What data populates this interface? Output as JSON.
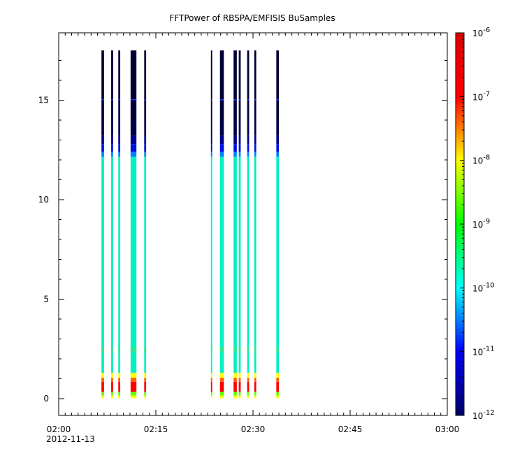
{
  "chart_data": {
    "type": "heatmap",
    "title": "FFTPower of RBSPA/EMFISIS  BuSamples",
    "xlabel": "",
    "ylabel": "",
    "x_date_label": "2012-11-13",
    "xlim": [
      "02:00",
      "03:00"
    ],
    "x_ticks": [
      "02:00",
      "02:15",
      "02:30",
      "02:45",
      "03:00"
    ],
    "ylim": [
      -0.9,
      18.4
    ],
    "y_ticks": [
      0,
      5,
      10,
      15
    ],
    "colorbar": {
      "scale": "log",
      "range": [
        "1e-12",
        "1e-6"
      ],
      "tick_base": "10",
      "tick_exponents": [
        "-12",
        "-11",
        "-10",
        "-9",
        "-8",
        "-7",
        "-6"
      ],
      "colormap": [
        "#000066",
        "#0000ff",
        "#00ffff",
        "#00ff00",
        "#ffff00",
        "#ff0000",
        "#e00000"
      ]
    },
    "frequency_max": 17.5,
    "columns": [
      {
        "start_min": 6.6,
        "end_min": 7.0,
        "low_band": "red"
      },
      {
        "start_min": 8.1,
        "end_min": 8.4,
        "low_band": "red"
      },
      {
        "start_min": 9.2,
        "end_min": 9.5,
        "low_band": "red"
      },
      {
        "start_min": 11.1,
        "end_min": 12.0,
        "low_band": "red"
      },
      {
        "start_min": 13.2,
        "end_min": 13.5,
        "low_band": "red"
      },
      {
        "start_min": 23.5,
        "end_min": 23.7,
        "low_band": "red"
      },
      {
        "start_min": 24.9,
        "end_min": 25.5,
        "low_band": "red"
      },
      {
        "start_min": 27.0,
        "end_min": 27.5,
        "low_band": "red"
      },
      {
        "start_min": 27.8,
        "end_min": 28.1,
        "low_band": "red"
      },
      {
        "start_min": 29.1,
        "end_min": 29.4,
        "low_band": "red"
      },
      {
        "start_min": 30.2,
        "end_min": 30.5,
        "low_band": "red"
      },
      {
        "start_min": 33.6,
        "end_min": 34.0,
        "low_band": "red"
      }
    ]
  }
}
